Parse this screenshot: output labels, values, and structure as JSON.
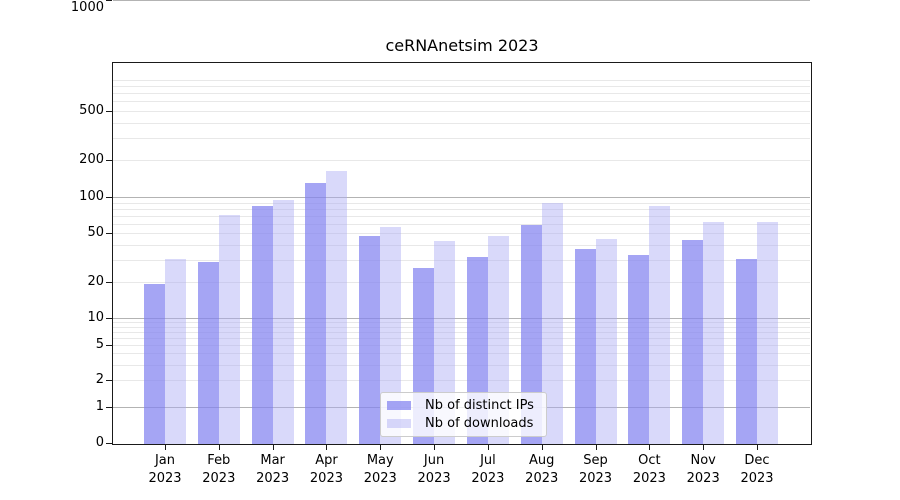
{
  "chart_data": {
    "type": "bar",
    "title": "ceRNAnetsim 2023",
    "categories": [
      "Jan",
      "Feb",
      "Mar",
      "Apr",
      "May",
      "Jun",
      "Jul",
      "Aug",
      "Sep",
      "Oct",
      "Nov",
      "Dec"
    ],
    "category_year": "2023",
    "series": [
      {
        "name": "Nb of distinct IPs",
        "key": "distinct-ips",
        "color": "rgba(130,130,240,0.72)",
        "values": [
          19,
          29,
          84,
          130,
          48,
          26,
          32,
          59,
          37,
          33,
          44,
          31
        ]
      },
      {
        "name": "Nb of downloads",
        "key": "downloads",
        "color": "rgba(170,170,245,0.45)",
        "values": [
          31,
          71,
          95,
          162,
          57,
          43,
          48,
          89,
          45,
          85,
          62,
          62
        ]
      }
    ],
    "xlabel": "",
    "ylabel": "",
    "yscale": "log-with-zero",
    "ylim": [
      0,
      1000
    ],
    "yticks": [
      0,
      1,
      2,
      5,
      10,
      20,
      50,
      100,
      200,
      500,
      1000
    ],
    "grid": "horizontal major and log-minor gridlines",
    "legend_position": "lower center"
  },
  "colors": {
    "grid_major": "#b3b3b3",
    "grid_minor": "#e8e8e8",
    "spine": "#1a1a1a",
    "text": "#000000",
    "legend_background": "rgba(255,255,255,0.8)",
    "legend_border": "#cccccc"
  }
}
